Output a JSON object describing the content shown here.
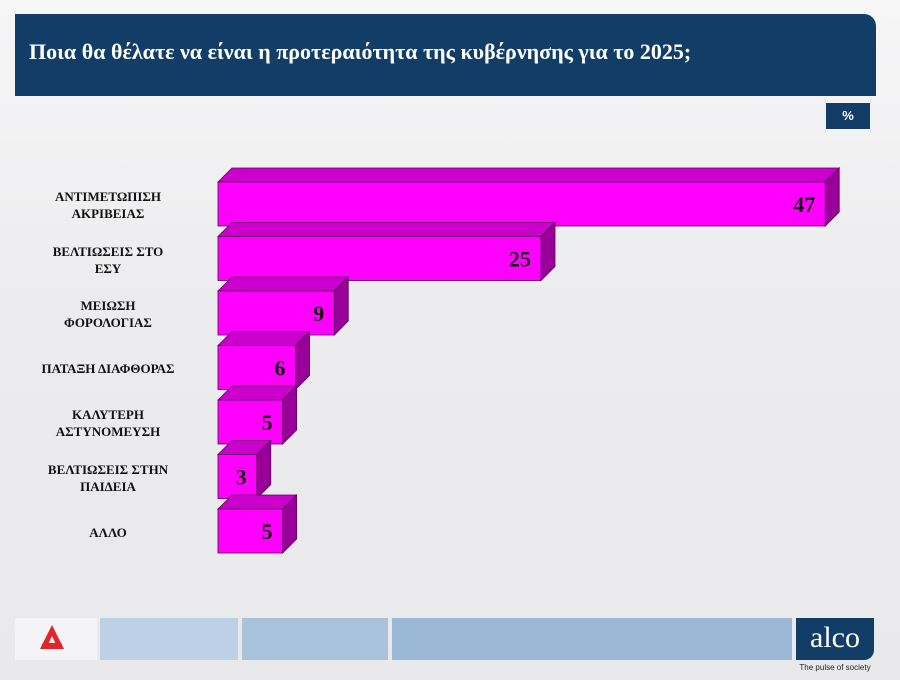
{
  "header": {
    "title": "Ποια θα θέλατε να είναι η προτεραιότητα της κυβέρνησης για το 2025;"
  },
  "unit_badge": "%",
  "colors": {
    "header": "#123d66",
    "bar_front": "#ff00ff",
    "bar_top": "#cc00cc",
    "bar_side": "#990099"
  },
  "chart_data": {
    "type": "bar",
    "orientation": "horizontal",
    "title": "Ποια θα θέλατε να είναι η προτεραιότητα της κυβέρνησης για το 2025;",
    "unit": "%",
    "categories": [
      [
        "ΑΝΤΙΜΕΤΩΠΙΣΗ",
        "ΑΚΡΙΒΕΙΑΣ"
      ],
      [
        "ΒΕΛΤΙΩΣΕΙΣ ΣΤΟ",
        "ΕΣΥ"
      ],
      [
        "ΜΕΙΩΣΗ",
        "ΦΟΡΟΛΟΓΙΑΣ"
      ],
      [
        "ΠΑΤΑΞΗ ΔΙΑΦΘΟΡΑΣ"
      ],
      [
        "ΚΑΛΥΤΕΡΗ",
        "ΑΣΤΥΝΟΜΕΥΣΗ"
      ],
      [
        "ΒΕΛΤΙΩΣΕΙΣ ΣΤΗΝ",
        "ΠΑΙΔΕΙΑ"
      ],
      [
        "ΑΛΛΟ"
      ]
    ],
    "values": [
      47,
      25,
      9,
      6,
      5,
      3,
      5
    ],
    "data_labels": [
      "47",
      "25",
      "9",
      "6",
      "5",
      "3",
      "5"
    ],
    "style": "3d",
    "grid": false,
    "legend": "none"
  },
  "footer": {
    "brand": "alco",
    "tagline": "The pulse of society",
    "logo_icon": "alpha-news-logo"
  }
}
